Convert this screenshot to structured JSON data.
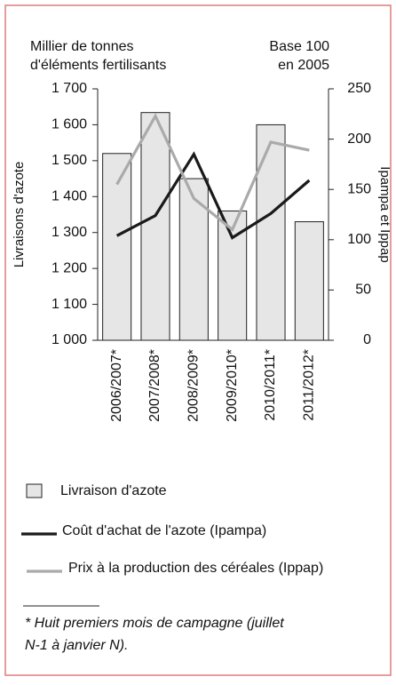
{
  "chart_data": {
    "type": "bar",
    "y_unit_label": [
      "Millier de tonnes",
      "d'éléments fertilisants"
    ],
    "y2_unit_label": [
      "Base 100",
      "en 2005"
    ],
    "ylabel": "Livraisons d'azote",
    "y2label": "Ipampa et Ippap",
    "categories": [
      "2006/2007*",
      "2007/2008*",
      "2008/2009*",
      "2009/2010*",
      "2010/2011*",
      "2011/2012*"
    ],
    "series": [
      {
        "name": "Livraison d'azote",
        "type": "bar",
        "color": "#e6e6e6",
        "values": [
          1520,
          1634,
          1450,
          1360,
          1600,
          1330
        ]
      },
      {
        "name": "Coût d'achat de l'azote (Ipampa)",
        "type": "line",
        "axis": "y2",
        "color": "#1a1a1a",
        "values": [
          104,
          124,
          185,
          102,
          126,
          159
        ]
      },
      {
        "name": "Prix à la production des céréales (Ippap)",
        "type": "line",
        "axis": "y2",
        "color": "#aaaaaa",
        "values": [
          155,
          223,
          141,
          110,
          197,
          189
        ]
      }
    ],
    "ylim": [
      1000,
      1700
    ],
    "yticks": [
      {
        "value": 1000,
        "label": "1 000"
      },
      {
        "value": 1100,
        "label": "1 100"
      },
      {
        "value": 1200,
        "label": "1 200"
      },
      {
        "value": 1300,
        "label": "1 300"
      },
      {
        "value": 1400,
        "label": "1 400"
      },
      {
        "value": 1500,
        "label": "1 500"
      },
      {
        "value": 1600,
        "label": "1 600"
      },
      {
        "value": 1700,
        "label": "1 700"
      }
    ],
    "y2lim": [
      0,
      250
    ],
    "y2ticks": [
      0,
      50,
      100,
      150,
      200,
      250
    ],
    "footnote": [
      "* Huit premiers mois de campagne (juillet",
      "N-1 à janvier N)."
    ]
  }
}
